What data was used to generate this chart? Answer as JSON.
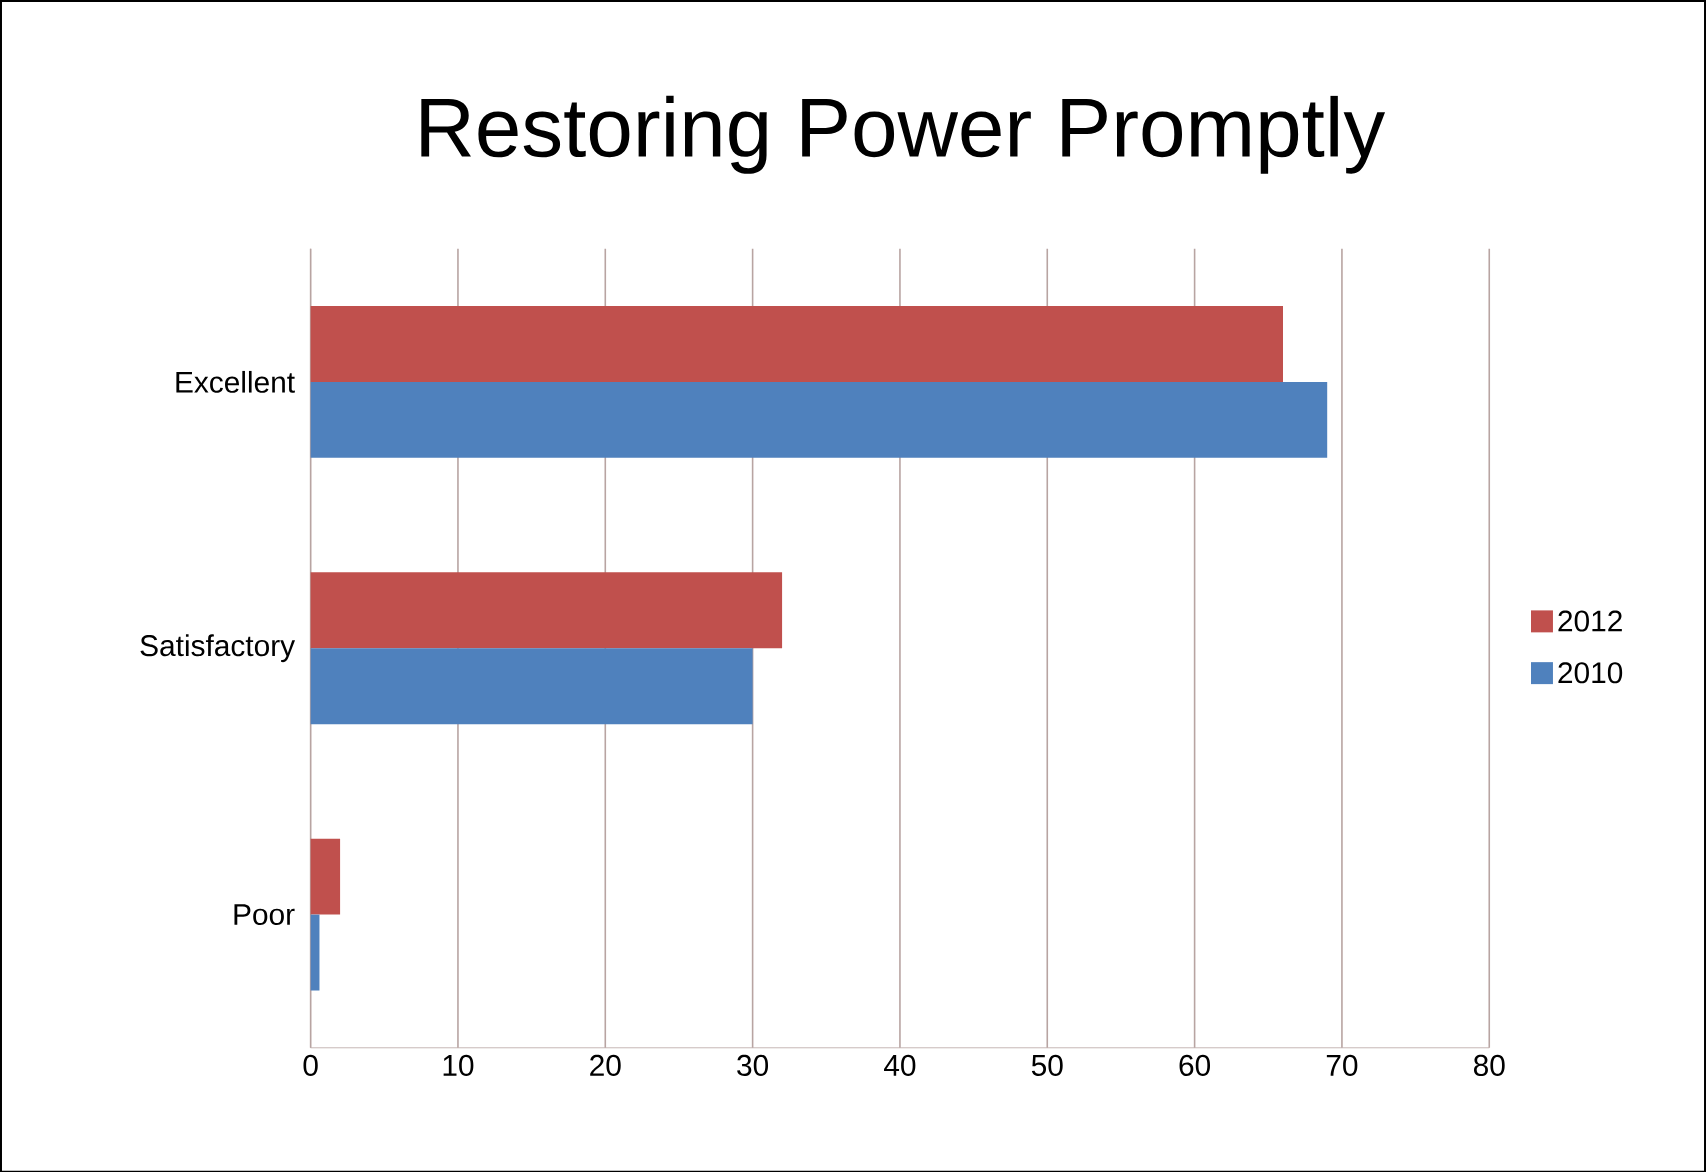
{
  "chart_data": {
    "type": "bar",
    "orientation": "horizontal",
    "title": "Restoring Power Promptly",
    "categories": [
      "Excellent",
      "Satisfactory",
      "Poor"
    ],
    "series": [
      {
        "name": "2012",
        "color": "#c0504d",
        "values": [
          66,
          32,
          2
        ]
      },
      {
        "name": "2010",
        "color": "#4f81bd",
        "values": [
          69,
          30,
          0.6
        ]
      }
    ],
    "xlim": [
      0,
      80
    ],
    "xticks": [
      0,
      10,
      20,
      30,
      40,
      50,
      60,
      70,
      80
    ],
    "grid": "x",
    "legend": "right"
  }
}
